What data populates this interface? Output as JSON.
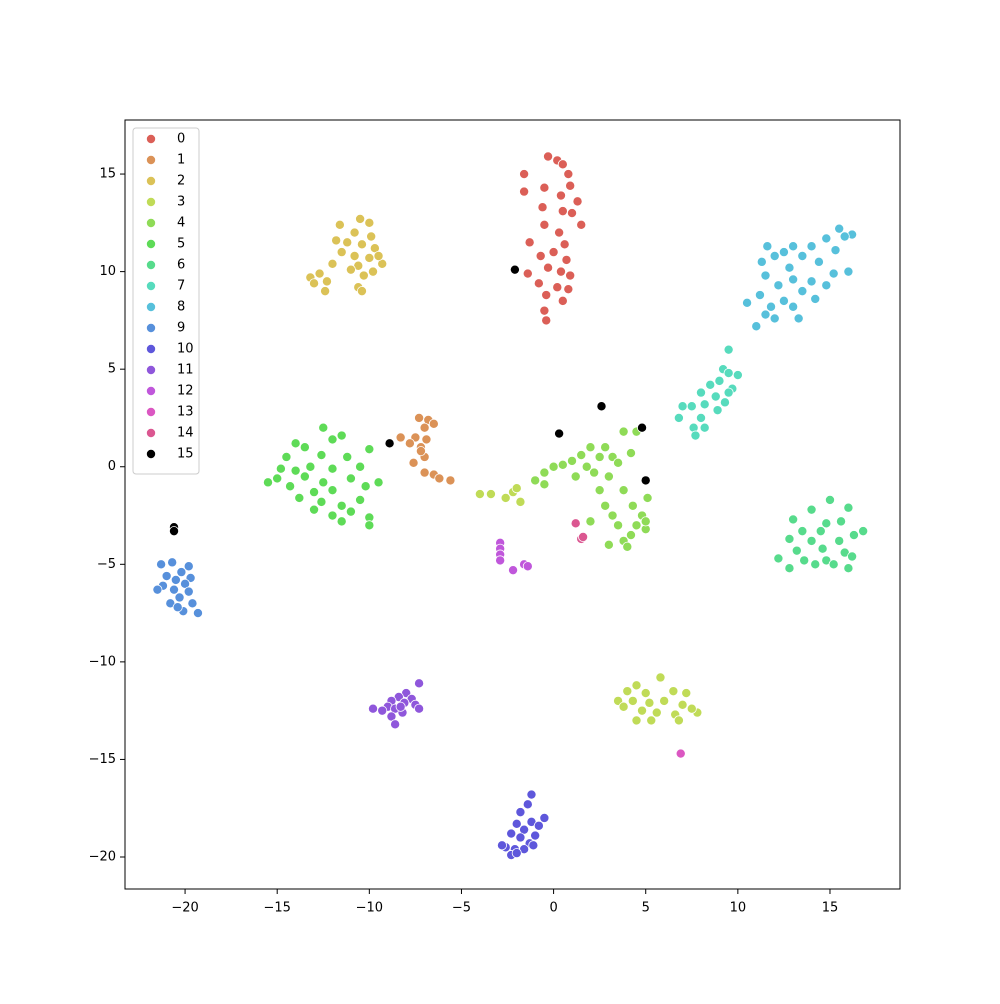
{
  "chart_data": {
    "type": "scatter",
    "xlim": [
      -23.26,
      18.8
    ],
    "ylim": [
      -21.64,
      17.77
    ],
    "xticks": [
      {
        "value": -20,
        "label": "−20"
      },
      {
        "value": -15,
        "label": "−15"
      },
      {
        "value": -10,
        "label": "−10"
      },
      {
        "value": -5,
        "label": "−5"
      },
      0,
      5,
      10,
      15
    ],
    "yticks": [
      {
        "value": -20,
        "label": "−20"
      },
      {
        "value": -15,
        "label": "−15"
      },
      {
        "value": -10,
        "label": "−10"
      },
      {
        "value": -5,
        "label": "−5"
      },
      0,
      5,
      10,
      15
    ],
    "grid": false,
    "legend": "upper left",
    "series": [
      {
        "name": "0",
        "color": "#db5f57",
        "x": [
          -0.3,
          0.2,
          0.5,
          -1.6,
          0.8,
          -1.6,
          0.9,
          -0.5,
          0.4,
          1.3,
          -0.6,
          0.5,
          1.0,
          1.5,
          -0.5,
          0.3,
          -1.3,
          0.6,
          0.0,
          -0.7,
          0.7,
          -0.3,
          0.4,
          -1.4,
          0.9,
          -0.8,
          0.2,
          -0.4,
          0.5,
          -0.5,
          -0.4,
          0.8
        ],
        "y": [
          15.9,
          15.7,
          15.5,
          15.0,
          15.0,
          14.1,
          14.4,
          14.3,
          13.9,
          13.6,
          13.3,
          13.1,
          13.0,
          12.4,
          12.4,
          12.0,
          11.5,
          11.4,
          11.0,
          10.8,
          10.6,
          10.2,
          10.0,
          9.9,
          9.8,
          9.4,
          9.2,
          8.8,
          8.5,
          8.0,
          7.5,
          9.1
        ]
      },
      {
        "name": "1",
        "color": "#db9257",
        "x": [
          -7.3,
          -6.8,
          -7.0,
          -6.5,
          -7.5,
          -6.9,
          -8.3,
          -7.2,
          -7.8,
          -7.0,
          -7.6,
          -7.0,
          -6.5,
          -6.2,
          -5.6,
          -7.2
        ],
        "y": [
          2.5,
          2.4,
          2.0,
          2.2,
          1.5,
          1.4,
          1.5,
          1.0,
          1.2,
          0.5,
          0.2,
          -0.3,
          -0.4,
          -0.6,
          -0.7,
          0.8
        ]
      },
      {
        "name": "2",
        "color": "#dbc257",
        "x": [
          -10.5,
          -10.0,
          -11.6,
          -10.8,
          -9.9,
          -11.2,
          -10.4,
          -9.7,
          -11.5,
          -10.8,
          -10.0,
          -12.0,
          -10.6,
          -9.3,
          -11.0,
          -9.8,
          -13.2,
          -12.7,
          -12.3,
          -13.0,
          -12.4,
          -10.3,
          -10.6,
          -10.4,
          -11.8,
          -9.5
        ],
        "y": [
          12.7,
          12.5,
          12.4,
          12.0,
          11.8,
          11.5,
          11.4,
          11.2,
          11.0,
          10.8,
          10.7,
          10.4,
          10.3,
          10.4,
          10.1,
          10.0,
          9.7,
          9.9,
          9.5,
          9.4,
          9.0,
          9.8,
          9.2,
          9.0,
          11.6,
          10.8
        ]
      },
      {
        "name": "3",
        "color": "#c0db57",
        "x": [
          4.5,
          5.8,
          4.0,
          5.0,
          6.5,
          7.2,
          3.5,
          4.3,
          5.2,
          6.0,
          7.0,
          7.8,
          4.8,
          5.6,
          6.6,
          4.5,
          5.3,
          6.8,
          3.8,
          7.5,
          -4.0,
          -3.4,
          -2.6,
          -2.2,
          -1.8,
          -2.0
        ],
        "y": [
          -11.2,
          -10.8,
          -11.5,
          -11.6,
          -11.5,
          -11.6,
          -12.0,
          -12.0,
          -12.1,
          -12.0,
          -12.2,
          -12.6,
          -12.5,
          -12.6,
          -12.7,
          -13.0,
          -13.0,
          -13.0,
          -12.3,
          -12.4,
          -1.4,
          -1.4,
          -1.6,
          -1.3,
          -1.8,
          -1.1
        ]
      },
      {
        "name": "4",
        "color": "#8fdb57",
        "x": [
          -1.0,
          -0.5,
          0.0,
          0.5,
          1.0,
          1.5,
          1.8,
          2.2,
          2.5,
          2.8,
          3.2,
          3.5,
          3.8,
          4.5,
          4.2,
          3.0,
          2.5,
          2.8,
          3.2,
          3.8,
          4.3,
          4.8,
          5.1,
          3.5,
          4.5,
          5.0,
          3.8,
          4.2,
          3.0,
          4.0,
          2.0,
          -0.5,
          2.0,
          1.2,
          5.0
        ],
        "y": [
          -0.7,
          -0.3,
          0.0,
          0.1,
          0.3,
          0.6,
          0.0,
          -0.3,
          0.5,
          1.0,
          0.5,
          0.2,
          1.8,
          1.8,
          0.7,
          -0.5,
          -1.2,
          -2.0,
          -2.5,
          -1.2,
          -2.0,
          -2.5,
          -1.6,
          -3.0,
          -3.0,
          -3.2,
          -3.8,
          -3.5,
          -4.0,
          -4.1,
          -2.8,
          -0.9,
          1.0,
          -0.5,
          -2.8
        ]
      },
      {
        "name": "5",
        "color": "#5edb57",
        "x": [
          -12.5,
          -11.5,
          -12.0,
          -14.0,
          -13.5,
          -10.0,
          -14.5,
          -12.6,
          -11.2,
          -13.2,
          -14.0,
          -12.0,
          -10.5,
          -15.0,
          -13.5,
          -12.5,
          -11.0,
          -9.5,
          -14.3,
          -13.0,
          -12.0,
          -10.2,
          -13.8,
          -12.6,
          -11.5,
          -10.5,
          -13.0,
          -12.0,
          -11.0,
          -10.0,
          -11.5,
          -10.0,
          -15.5,
          -14.8
        ],
        "y": [
          2.0,
          1.6,
          1.4,
          1.2,
          1.0,
          0.9,
          0.5,
          0.6,
          0.5,
          0.0,
          -0.2,
          -0.1,
          0.0,
          -0.6,
          -0.5,
          -0.8,
          -0.6,
          -0.8,
          -1.0,
          -1.3,
          -1.2,
          -1.0,
          -1.6,
          -1.8,
          -2.0,
          -1.7,
          -2.2,
          -2.5,
          -2.3,
          -2.6,
          -2.8,
          -3.0,
          -0.8,
          -0.1
        ]
      },
      {
        "name": "6",
        "color": "#57db8c",
        "x": [
          15.0,
          14.0,
          16.0,
          13.0,
          14.8,
          15.6,
          13.5,
          14.5,
          16.3,
          12.8,
          14.0,
          15.5,
          16.8,
          13.2,
          14.6,
          15.8,
          12.2,
          13.6,
          14.8,
          16.2,
          12.8,
          15.2,
          16.0,
          14.2
        ],
        "y": [
          -1.7,
          -2.2,
          -2.1,
          -2.7,
          -2.9,
          -2.8,
          -3.3,
          -3.3,
          -3.5,
          -3.7,
          -3.8,
          -3.8,
          -3.3,
          -4.3,
          -4.2,
          -4.4,
          -4.7,
          -4.8,
          -4.8,
          -4.6,
          -5.2,
          -5.0,
          -5.2,
          -5.0
        ]
      },
      {
        "name": "7",
        "color": "#57dbbd",
        "x": [
          9.5,
          9.2,
          9.5,
          10.0,
          9.0,
          8.5,
          9.7,
          8.0,
          8.8,
          9.3,
          7.5,
          8.2,
          8.9,
          7.0,
          6.8,
          8.0,
          7.6,
          8.2,
          7.7,
          9.5
        ],
        "y": [
          6.0,
          5.0,
          4.8,
          4.7,
          4.4,
          4.2,
          4.0,
          3.8,
          3.6,
          3.3,
          3.1,
          3.2,
          2.9,
          3.1,
          2.5,
          2.5,
          2.0,
          2.0,
          1.6,
          3.8
        ]
      },
      {
        "name": "8",
        "color": "#57c0db",
        "x": [
          15.5,
          16.2,
          14.8,
          13.0,
          14.0,
          11.6,
          12.5,
          15.3,
          13.5,
          14.4,
          11.3,
          12.8,
          16.0,
          15.2,
          11.5,
          13.0,
          14.0,
          12.2,
          13.5,
          14.8,
          11.2,
          12.5,
          14.2,
          10.5,
          11.8,
          13.0,
          11.5,
          12.0,
          13.3,
          11.0,
          15.8,
          12.0
        ],
        "y": [
          12.2,
          11.9,
          11.7,
          11.3,
          11.3,
          11.3,
          11.0,
          11.1,
          10.8,
          10.5,
          10.5,
          10.2,
          10.0,
          9.9,
          9.8,
          9.6,
          9.5,
          9.3,
          9.0,
          9.3,
          8.8,
          8.5,
          8.6,
          8.4,
          8.2,
          8.2,
          7.8,
          7.6,
          7.6,
          7.2,
          11.8,
          10.8
        ]
      },
      {
        "name": "9",
        "color": "#5790db",
        "x": [
          -20.7,
          -21.3,
          -19.8,
          -20.2,
          -21.0,
          -20.5,
          -19.7,
          -20.0,
          -21.2,
          -20.6,
          -19.8,
          -21.5,
          -20.3,
          -20.8,
          -19.6,
          -20.1,
          -19.3,
          -20.4
        ],
        "y": [
          -4.9,
          -5.0,
          -5.1,
          -5.4,
          -5.6,
          -5.8,
          -5.7,
          -6.0,
          -6.1,
          -6.3,
          -6.4,
          -6.3,
          -6.7,
          -7.0,
          -7.0,
          -7.4,
          -7.5,
          -7.2
        ]
      },
      {
        "name": "10",
        "color": "#5e57db",
        "x": [
          -1.2,
          -1.4,
          -1.8,
          -0.5,
          -1.2,
          -2.0,
          -0.8,
          -1.6,
          -2.3,
          -1.0,
          -1.8,
          -1.3,
          -2.6,
          -2.1,
          -1.6,
          -2.3,
          -2.0,
          -1.1,
          -2.8
        ],
        "y": [
          -16.8,
          -17.3,
          -17.7,
          -18.0,
          -18.2,
          -18.3,
          -18.4,
          -18.6,
          -18.8,
          -18.9,
          -19.0,
          -19.3,
          -19.5,
          -19.6,
          -19.6,
          -19.9,
          -19.8,
          -19.4,
          -19.4
        ]
      },
      {
        "name": "11",
        "color": "#8f57db",
        "x": [
          -7.3,
          -8.0,
          -8.4,
          -7.7,
          -8.8,
          -8.1,
          -7.5,
          -9.0,
          -9.8,
          -8.6,
          -7.3,
          -9.3,
          -8.2,
          -8.8,
          -8.6,
          -8.3
        ],
        "y": [
          -11.1,
          -11.6,
          -11.8,
          -11.9,
          -12.0,
          -12.1,
          -12.2,
          -12.3,
          -12.4,
          -12.4,
          -12.4,
          -12.5,
          -12.6,
          -12.8,
          -13.2,
          -12.3
        ]
      },
      {
        "name": "12",
        "color": "#c057db",
        "x": [
          -2.9,
          -2.9,
          -2.9,
          -2.9,
          -2.2,
          -1.6,
          -1.4
        ],
        "y": [
          -3.9,
          -4.2,
          -4.5,
          -4.8,
          -5.3,
          -5.0,
          -5.1
        ]
      },
      {
        "name": "13",
        "color": "#db57c2",
        "x": [
          6.9
        ],
        "y": [
          -14.7
        ]
      },
      {
        "name": "14",
        "color": "#db5791",
        "x": [
          1.2,
          1.5,
          1.6
        ],
        "y": [
          -2.9,
          -3.7,
          -3.6
        ]
      },
      {
        "name": "15",
        "color": "#000000",
        "x": [
          -2.1,
          0.3,
          2.6,
          4.8,
          5.0,
          -8.9,
          -20.6,
          -20.6
        ],
        "y": [
          10.1,
          1.7,
          3.1,
          2.0,
          -0.7,
          1.2,
          -3.1,
          -3.3
        ]
      }
    ]
  }
}
